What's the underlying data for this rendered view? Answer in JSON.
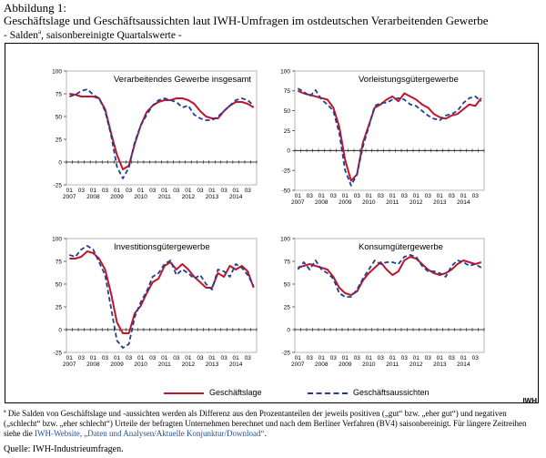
{
  "header": {
    "label": "Abbildung 1:",
    "title": "Geschäftslage und Geschäftsaussichten laut IWH-Umfragen im ostdeutschen Verarbeitenden Gewerbe",
    "subtitle_pre": "- Salden",
    "subtitle_sup": "a",
    "subtitle_post": ", saisonbereinigte Quartalswerte -"
  },
  "legend": {
    "lage": "Geschäftslage",
    "aussichten": "Geschäftsaussichten"
  },
  "colors": {
    "lage": "#c0162a",
    "aussichten": "#1f3f8f"
  },
  "iwh_logo": "IWH",
  "footnote": {
    "marker": "a",
    "text": "Die Salden von Geschäftslage und -aussichten werden als Differenz aus den Prozentanteilen der jeweils positiven („gut“ bzw. „eher gut“) und negativen („schlecht“ bzw. „eher schlecht“) Urteile der befragten Unternehmen berechnet und nach dem Berliner Verfahren (BV4) saisonbereinigt. Für längere Zeitreihen siehe die ",
    "link": "IWH-Website, „Daten und Analysen/Aktuelle Konjunktur/Download“",
    "end": "."
  },
  "source": "Quelle:   IWH-Industrieumfragen.",
  "chart_data": [
    {
      "type": "line",
      "title": "Verarbeitendes Gewerbe insgesamt",
      "x_quarter_labels": [
        "01",
        "03",
        "01",
        "03",
        "01",
        "03",
        "01",
        "03",
        "01",
        "03",
        "01",
        "03",
        "01",
        "03",
        "01",
        "03"
      ],
      "x_year_labels": [
        "2007",
        "2008",
        "2009",
        "2010",
        "2011",
        "2012",
        "2013",
        "2014"
      ],
      "ylim": [
        -25,
        100
      ],
      "yticks": [
        "-25",
        "0",
        "25",
        "50",
        "75",
        "100"
      ],
      "series": [
        {
          "name": "Geschäftslage",
          "values": [
            75,
            74,
            72,
            72,
            72,
            70,
            58,
            32,
            8,
            -8,
            -4,
            20,
            40,
            55,
            62,
            66,
            68,
            68,
            70,
            70,
            68,
            64,
            56,
            50,
            48,
            48,
            56,
            62,
            66,
            66,
            64,
            60
          ]
        },
        {
          "name": "Geschäftsaussichten",
          "values": [
            72,
            74,
            78,
            80,
            74,
            70,
            56,
            30,
            -5,
            -18,
            -6,
            22,
            40,
            52,
            62,
            68,
            70,
            68,
            66,
            60,
            62,
            52,
            48,
            46,
            46,
            50,
            56,
            62,
            68,
            70,
            68,
            62
          ]
        }
      ]
    },
    {
      "type": "line",
      "title": "Vorleistungsgütergewerbe",
      "x_quarter_labels": [
        "01",
        "03",
        "01",
        "03",
        "01",
        "03",
        "01",
        "03",
        "01",
        "03",
        "01",
        "03",
        "01",
        "03",
        "01",
        "03"
      ],
      "x_year_labels": [
        "2007",
        "2008",
        "2009",
        "2010",
        "2011",
        "2012",
        "2013",
        "2014"
      ],
      "ylim": [
        -50,
        100
      ],
      "yticks": [
        "-50",
        "-25",
        "0",
        "25",
        "50",
        "75",
        "100"
      ],
      "series": [
        {
          "name": "Geschäftslage",
          "values": [
            75,
            72,
            70,
            68,
            66,
            64,
            54,
            30,
            -12,
            -38,
            -30,
            10,
            32,
            54,
            58,
            64,
            68,
            62,
            72,
            68,
            64,
            58,
            54,
            46,
            42,
            40,
            44,
            46,
            52,
            58,
            56,
            66
          ]
        },
        {
          "name": "Geschäftsaussichten",
          "values": [
            78,
            74,
            68,
            76,
            64,
            58,
            50,
            22,
            -25,
            -44,
            -30,
            5,
            30,
            56,
            60,
            60,
            64,
            66,
            64,
            58,
            56,
            50,
            44,
            40,
            38,
            44,
            46,
            50,
            60,
            66,
            68,
            62
          ]
        }
      ]
    },
    {
      "type": "line",
      "title": "Investitionsgütergewerbe",
      "x_quarter_labels": [
        "01",
        "03",
        "01",
        "03",
        "01",
        "03",
        "01",
        "03",
        "01",
        "03",
        "01",
        "03",
        "01",
        "03",
        "01",
        "03"
      ],
      "x_year_labels": [
        "2007",
        "2008",
        "2009",
        "2010",
        "2011",
        "2012",
        "2013",
        "2014"
      ],
      "ylim": [
        -25,
        100
      ],
      "yticks": [
        "-25",
        "0",
        "25",
        "50",
        "75",
        "100"
      ],
      "series": [
        {
          "name": "Geschäftslage",
          "values": [
            78,
            78,
            80,
            86,
            84,
            78,
            66,
            40,
            8,
            -4,
            -4,
            18,
            26,
            40,
            52,
            56,
            70,
            74,
            66,
            72,
            66,
            58,
            52,
            46,
            46,
            62,
            58,
            70,
            66,
            70,
            64,
            46
          ]
        },
        {
          "name": "Geschäftsaussichten",
          "values": [
            82,
            80,
            88,
            92,
            88,
            74,
            60,
            24,
            -12,
            -20,
            -16,
            14,
            30,
            42,
            58,
            62,
            72,
            76,
            60,
            66,
            62,
            56,
            60,
            50,
            44,
            66,
            64,
            58,
            72,
            68,
            60,
            48
          ]
        }
      ]
    },
    {
      "type": "line",
      "title": "Konsumgütergewerbe",
      "x_quarter_labels": [
        "01",
        "03",
        "01",
        "03",
        "01",
        "03",
        "01",
        "03",
        "01",
        "03",
        "01",
        "03",
        "01",
        "03",
        "01",
        "03"
      ],
      "x_year_labels": [
        "2007",
        "2008",
        "2009",
        "2010",
        "2011",
        "2012",
        "2013",
        "2014"
      ],
      "ylim": [
        -25,
        100
      ],
      "yticks": [
        "-25",
        "0",
        "25",
        "50",
        "75",
        "100"
      ],
      "series": [
        {
          "name": "Geschäftslage",
          "values": [
            68,
            70,
            72,
            70,
            68,
            66,
            58,
            46,
            40,
            38,
            42,
            54,
            62,
            68,
            74,
            66,
            60,
            64,
            76,
            80,
            78,
            72,
            66,
            62,
            60,
            62,
            66,
            72,
            76,
            74,
            72,
            74
          ]
        },
        {
          "name": "Geschäftsaussichten",
          "values": [
            66,
            74,
            66,
            76,
            66,
            62,
            56,
            40,
            36,
            36,
            44,
            56,
            66,
            76,
            72,
            74,
            74,
            72,
            80,
            82,
            80,
            70,
            64,
            64,
            62,
            58,
            70,
            76,
            74,
            70,
            72,
            68
          ]
        }
      ]
    }
  ]
}
